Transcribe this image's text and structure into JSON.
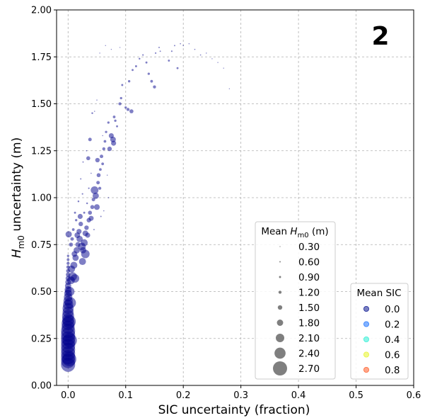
{
  "chart_data": {
    "type": "scatter",
    "panel_label": "2",
    "xlabel": "SIC uncertainty (fraction)",
    "ylabel_base": "H",
    "ylabel_sub": "m0",
    "ylabel_rest": " uncertainty (m)",
    "xlim": [
      -0.02,
      0.6
    ],
    "ylim": [
      0.0,
      2.0
    ],
    "xticks": [
      0.0,
      0.1,
      0.2,
      0.3,
      0.4,
      0.5,
      0.6
    ],
    "xtick_labels": [
      "0.0",
      "0.1",
      "0.2",
      "0.3",
      "0.4",
      "0.5",
      "0.6"
    ],
    "yticks": [
      0.0,
      0.25,
      0.5,
      0.75,
      1.0,
      1.25,
      1.5,
      1.75,
      2.0
    ],
    "ytick_labels": [
      "0.00",
      "0.25",
      "0.50",
      "0.75",
      "1.00",
      "1.25",
      "1.50",
      "1.75",
      "2.00"
    ],
    "grid": true,
    "color_series_name": "Mean SIC",
    "size_series_name": "Mean Hm0 (m)",
    "size_legend": {
      "title_base": "Mean ",
      "title_sym": "H",
      "title_sub": "m0",
      "title_unit": " (m)",
      "placement": "center-right",
      "entries": [
        "0.30",
        "0.60",
        "0.90",
        "1.20",
        "1.50",
        "1.80",
        "2.10",
        "2.40",
        "2.70"
      ],
      "values": [
        0.3,
        0.6,
        0.9,
        1.2,
        1.5,
        1.8,
        2.1,
        2.4,
        2.7
      ]
    },
    "color_legend": {
      "title": "Mean SIC",
      "placement": "lower-right",
      "entries": [
        "0.0",
        "0.2",
        "0.4",
        "0.6",
        "0.8"
      ],
      "colors": [
        "#1f2a9a",
        "#2f7fff",
        "#3ff0d8",
        "#e8f53a",
        "#ff6a3a"
      ]
    },
    "series_color": "#00008b",
    "points": [
      [
        0.0,
        0.11,
        2.7
      ],
      [
        0.0,
        0.13,
        2.7
      ],
      [
        0.0,
        0.15,
        2.7
      ],
      [
        0.0,
        0.17,
        2.7
      ],
      [
        0.0,
        0.19,
        2.7
      ],
      [
        0.0,
        0.21,
        2.7
      ],
      [
        0.0,
        0.23,
        2.7
      ],
      [
        0.0,
        0.25,
        2.7
      ],
      [
        0.0,
        0.27,
        2.7
      ],
      [
        0.0,
        0.29,
        2.7
      ],
      [
        0.0,
        0.31,
        2.6
      ],
      [
        0.0,
        0.33,
        2.6
      ],
      [
        0.0,
        0.35,
        2.5
      ],
      [
        0.0,
        0.37,
        2.5
      ],
      [
        0.0,
        0.39,
        2.4
      ],
      [
        0.0,
        0.41,
        2.4
      ],
      [
        0.0,
        0.43,
        2.3
      ],
      [
        0.0,
        0.45,
        2.2
      ],
      [
        0.0,
        0.47,
        2.1
      ],
      [
        0.0,
        0.49,
        2.0
      ],
      [
        0.0,
        0.51,
        1.9
      ],
      [
        0.0,
        0.53,
        1.8
      ],
      [
        0.0,
        0.55,
        1.7
      ],
      [
        0.0,
        0.57,
        1.6
      ],
      [
        0.0,
        0.59,
        1.5
      ],
      [
        0.0,
        0.61,
        1.4
      ],
      [
        0.0,
        0.63,
        1.3
      ],
      [
        0.0,
        0.65,
        1.2
      ],
      [
        0.0,
        0.67,
        1.1
      ],
      [
        0.0,
        0.69,
        1.0
      ],
      [
        0.002,
        0.14,
        2.7
      ],
      [
        0.003,
        0.24,
        2.7
      ],
      [
        0.002,
        0.34,
        2.6
      ],
      [
        0.004,
        0.44,
        2.4
      ],
      [
        0.003,
        0.5,
        2.2
      ],
      [
        0.001,
        0.805,
        1.8
      ],
      [
        0.005,
        0.56,
        2.0
      ],
      [
        0.006,
        0.62,
        1.9
      ],
      [
        0.008,
        0.58,
        2.1
      ],
      [
        0.01,
        0.64,
        1.9
      ],
      [
        0.012,
        0.57,
        2.1
      ],
      [
        0.013,
        0.68,
        1.8
      ],
      [
        0.011,
        0.7,
        1.7
      ],
      [
        0.015,
        0.72,
        1.8
      ],
      [
        0.017,
        0.75,
        1.6
      ],
      [
        0.016,
        0.8,
        1.7
      ],
      [
        0.019,
        0.82,
        1.6
      ],
      [
        0.02,
        0.78,
        1.8
      ],
      [
        0.021,
        0.9,
        1.6
      ],
      [
        0.022,
        0.86,
        1.5
      ],
      [
        0.024,
        0.74,
        2.0
      ],
      [
        0.025,
        0.66,
        1.9
      ],
      [
        0.026,
        0.72,
        1.8
      ],
      [
        0.028,
        0.76,
        1.9
      ],
      [
        0.03,
        0.7,
        2.1
      ],
      [
        0.03,
        0.81,
        1.7
      ],
      [
        0.032,
        0.84,
        1.5
      ],
      [
        0.034,
        0.8,
        1.6
      ],
      [
        0.036,
        0.88,
        1.5
      ],
      [
        0.038,
        0.92,
        1.4
      ],
      [
        0.04,
        0.89,
        1.6
      ],
      [
        0.042,
        0.95,
        1.4
      ],
      [
        0.044,
        0.99,
        1.3
      ],
      [
        0.046,
        1.04,
        2.0
      ],
      [
        0.048,
        1.01,
        1.8
      ],
      [
        0.05,
        0.95,
        1.7
      ],
      [
        0.052,
        1.08,
        1.3
      ],
      [
        0.053,
        1.12,
        1.4
      ],
      [
        0.051,
        1.2,
        1.5
      ],
      [
        0.055,
        1.05,
        1.2
      ],
      [
        0.056,
        1.15,
        1.1
      ],
      [
        0.058,
        1.22,
        1.3
      ],
      [
        0.06,
        1.18,
        1.1
      ],
      [
        0.062,
        1.26,
        1.2
      ],
      [
        0.064,
        1.3,
        1.1
      ],
      [
        0.066,
        1.35,
        1.0
      ],
      [
        0.07,
        1.4,
        1.0
      ],
      [
        0.072,
        1.26,
        1.5
      ],
      [
        0.075,
        1.33,
        1.6
      ],
      [
        0.078,
        1.31,
        1.7
      ],
      [
        0.079,
        1.29,
        1.6
      ],
      [
        0.08,
        1.43,
        1.1
      ],
      [
        0.082,
        1.41,
        1.0
      ],
      [
        0.085,
        1.38,
        0.9
      ],
      [
        0.09,
        1.5,
        1.2
      ],
      [
        0.092,
        1.53,
        1.0
      ],
      [
        0.094,
        1.6,
        0.9
      ],
      [
        0.1,
        1.48,
        1.0
      ],
      [
        0.104,
        1.47,
        1.2
      ],
      [
        0.11,
        1.46,
        1.4
      ],
      [
        0.106,
        1.62,
        1.0
      ],
      [
        0.112,
        1.68,
        0.9
      ],
      [
        0.118,
        1.7,
        0.9
      ],
      [
        0.124,
        1.74,
        0.8
      ],
      [
        0.13,
        1.76,
        0.7
      ],
      [
        0.136,
        1.72,
        0.9
      ],
      [
        0.14,
        1.66,
        1.0
      ],
      [
        0.145,
        1.62,
        1.1
      ],
      [
        0.15,
        1.59,
        1.2
      ],
      [
        0.152,
        1.77,
        0.7
      ],
      [
        0.158,
        1.8,
        0.6
      ],
      [
        0.16,
        1.78,
        0.6
      ],
      [
        0.175,
        1.73,
        0.9
      ],
      [
        0.18,
        1.78,
        0.7
      ],
      [
        0.185,
        1.81,
        0.6
      ],
      [
        0.19,
        1.69,
        0.9
      ],
      [
        0.195,
        1.82,
        0.5
      ],
      [
        0.2,
        1.81,
        0.5
      ],
      [
        0.21,
        1.82,
        0.4
      ],
      [
        0.22,
        1.79,
        0.5
      ],
      [
        0.23,
        1.76,
        0.5
      ],
      [
        0.24,
        1.77,
        0.4
      ],
      [
        0.25,
        1.74,
        0.3
      ],
      [
        0.26,
        1.72,
        0.3
      ],
      [
        0.27,
        1.69,
        0.3
      ],
      [
        0.28,
        1.58,
        0.3
      ],
      [
        0.09,
        1.8,
        0.3
      ],
      [
        0.075,
        1.79,
        0.3
      ],
      [
        0.065,
        1.81,
        0.3
      ],
      [
        0.055,
        1.77,
        0.3
      ],
      [
        0.05,
        1.52,
        0.4
      ],
      [
        0.046,
        1.46,
        0.4
      ],
      [
        0.06,
        1.33,
        0.4
      ],
      [
        0.068,
        1.12,
        0.4
      ],
      [
        0.07,
        1.0,
        0.5
      ],
      [
        0.062,
        0.93,
        0.5
      ],
      [
        0.057,
        0.9,
        0.6
      ],
      [
        0.045,
        0.83,
        0.6
      ],
      [
        0.04,
        1.13,
        0.5
      ],
      [
        0.036,
        1.05,
        0.7
      ],
      [
        0.033,
        0.97,
        0.8
      ],
      [
        0.028,
        0.92,
        0.9
      ],
      [
        0.025,
        1.02,
        0.7
      ],
      [
        0.022,
        1.1,
        0.6
      ],
      [
        0.018,
        0.98,
        0.8
      ],
      [
        0.014,
        0.88,
        1.0
      ],
      [
        0.012,
        0.92,
        0.9
      ],
      [
        0.009,
        0.83,
        1.1
      ],
      [
        0.007,
        0.78,
        1.3
      ],
      [
        0.005,
        0.75,
        1.4
      ],
      [
        0.035,
        1.21,
        1.4
      ],
      [
        0.038,
        1.31,
        1.3
      ],
      [
        0.042,
        1.45,
        0.8
      ],
      [
        0.026,
        1.19,
        0.6
      ],
      [
        0.032,
        1.25,
        0.5
      ]
    ]
  }
}
